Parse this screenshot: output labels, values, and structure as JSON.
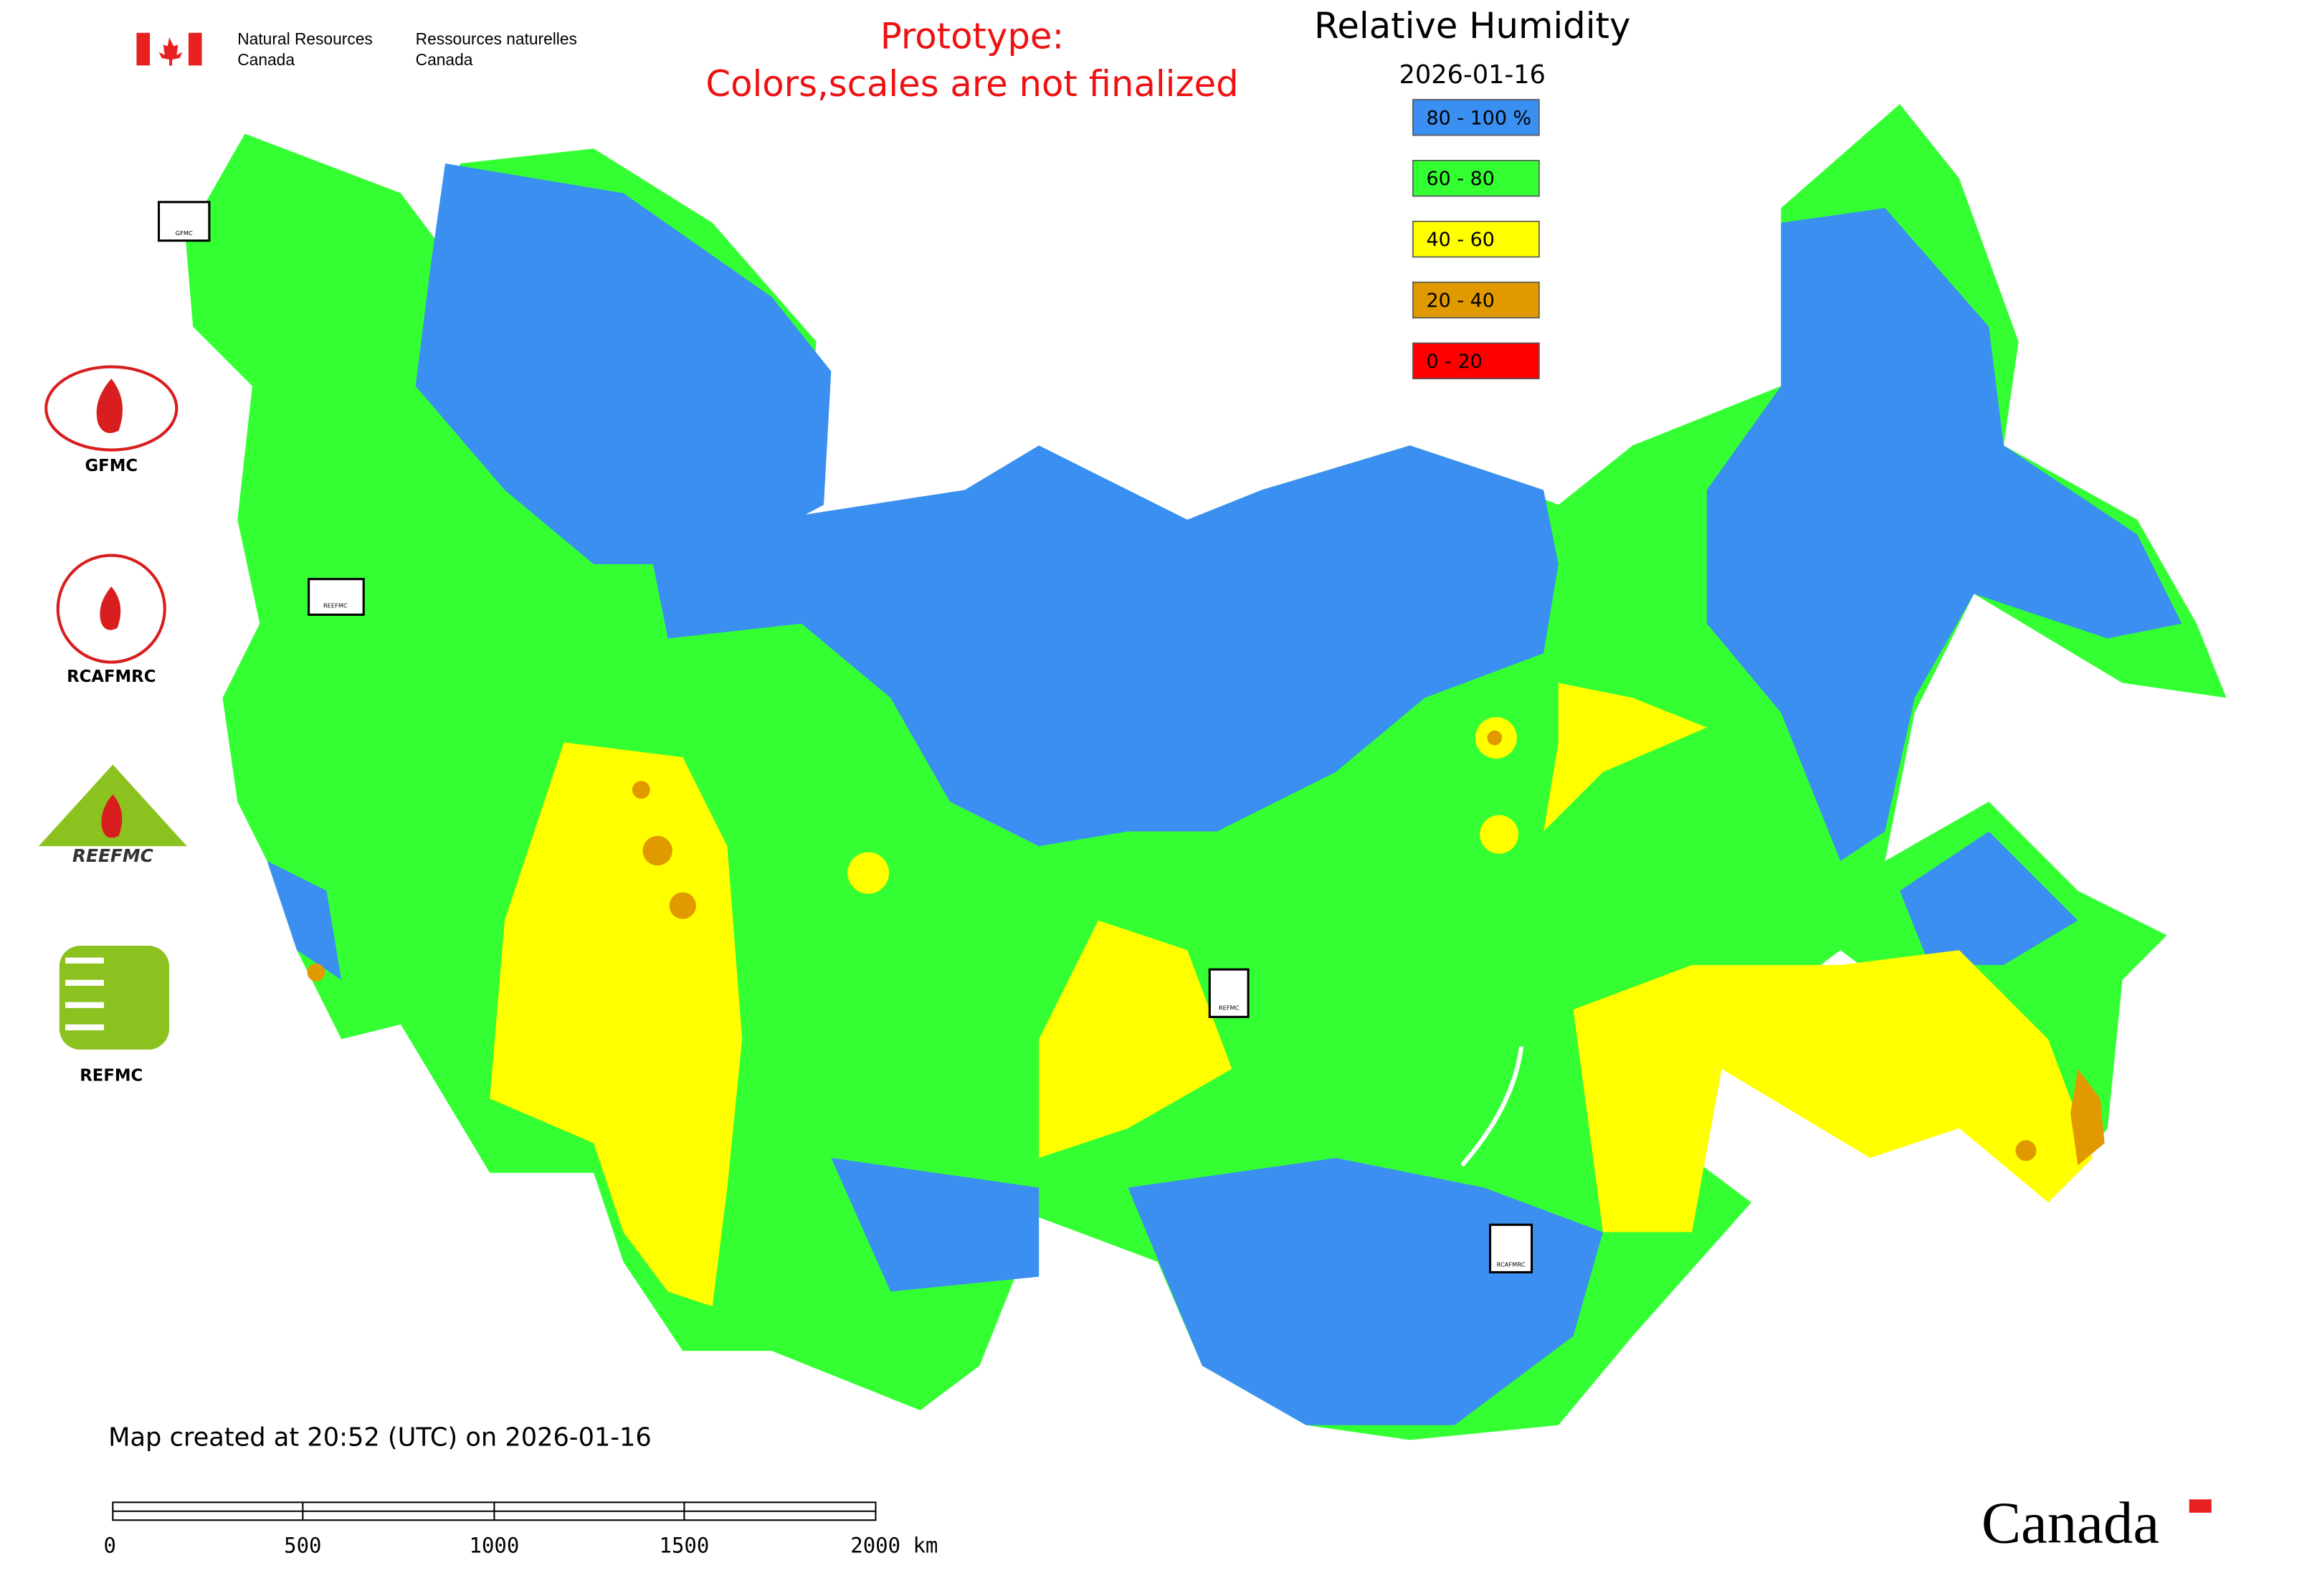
{
  "header": {
    "en_line1": "Natural Resources",
    "en_line2": "Canada",
    "fr_line1": "Ressources naturelles",
    "fr_line2": "Canada"
  },
  "notice": {
    "line1": "Prototype:",
    "line2": "Colors,scales are not finalized"
  },
  "legend": {
    "title": "Relative Humidity",
    "date": "2026-01-16",
    "items": [
      {
        "label": "80 - 100 %",
        "color": "#3a8ff0"
      },
      {
        "label": "60 - 80",
        "color": "#33ff33"
      },
      {
        "label": "40 - 60",
        "color": "#ffff00"
      },
      {
        "label": "20 - 40",
        "color": "#e09a00"
      },
      {
        "label": "0 - 20",
        "color": "#ff0000"
      }
    ]
  },
  "logos": [
    "GFMC",
    "RCAFMRC",
    "REEFMC",
    "REFMC"
  ],
  "map_markers": [
    "GFMC",
    "REEFMC",
    "REFMC",
    "RCAFMRC"
  ],
  "footer": {
    "created": "Map created at 20:52 (UTC) on 2026-01-16"
  },
  "scale_bar": {
    "labels": [
      "0",
      "500",
      "1000",
      "1500",
      "2000 km"
    ]
  },
  "wordmark": "Canada"
}
